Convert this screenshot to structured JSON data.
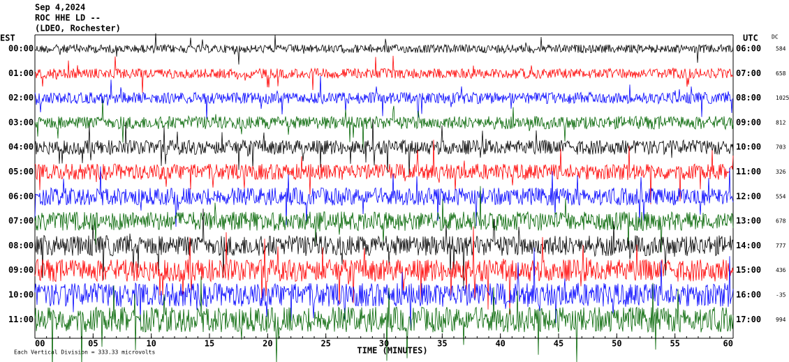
{
  "chart_data": {
    "type": "helicorder",
    "title_lines": [
      "Sep 4,2024",
      "ROC HHE LD --",
      "(LDEO, Rochester)"
    ],
    "left_axis_label": "EST",
    "right_axis_label": "UTC",
    "dc_label": "DC",
    "rows": [
      {
        "est": "00:00",
        "utc": "06:00",
        "dc": 584,
        "color": "#000000"
      },
      {
        "est": "01:00",
        "utc": "07:00",
        "dc": 658,
        "color": "#ff0000"
      },
      {
        "est": "02:00",
        "utc": "08:00",
        "dc": 1025,
        "color": "#0000ff"
      },
      {
        "est": "03:00",
        "utc": "09:00",
        "dc": 812,
        "color": "#006400"
      },
      {
        "est": "04:00",
        "utc": "10:00",
        "dc": 703,
        "color": "#000000"
      },
      {
        "est": "05:00",
        "utc": "11:00",
        "dc": 326,
        "color": "#ff0000"
      },
      {
        "est": "06:00",
        "utc": "12:00",
        "dc": 554,
        "color": "#0000ff"
      },
      {
        "est": "07:00",
        "utc": "13:00",
        "dc": 678,
        "color": "#006400"
      },
      {
        "est": "08:00",
        "utc": "14:00",
        "dc": 777,
        "color": "#000000"
      },
      {
        "est": "09:00",
        "utc": "15:00",
        "dc": 436,
        "color": "#ff0000"
      },
      {
        "est": "10:00",
        "utc": "16:00",
        "dc": -35,
        "color": "#0000ff"
      },
      {
        "est": "11:00",
        "utc": "17:00",
        "dc": 994,
        "color": "#006400"
      }
    ],
    "xlabel": "TIME (MINUTES)",
    "xlim": [
      0,
      60
    ],
    "xticks": [
      {
        "value": 0,
        "label": "00"
      },
      {
        "value": 5,
        "label": "05"
      },
      10,
      15,
      20,
      25,
      30,
      35,
      40,
      45,
      50,
      55,
      60
    ],
    "footnote": "Each Vertical Division =  333.33 microvolts"
  }
}
